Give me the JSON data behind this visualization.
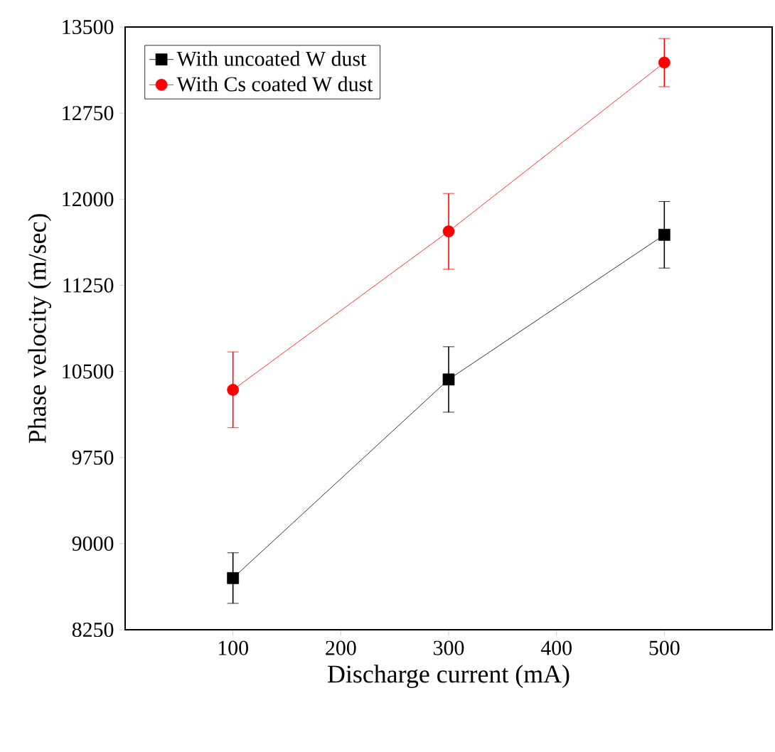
{
  "chart_data": {
    "type": "line",
    "xlabel": "Discharge current (mA)",
    "ylabel": "Phase velocity (m/sec)",
    "x": [
      100,
      300,
      500
    ],
    "series": [
      {
        "name": "With uncoated W dust",
        "color": "#000000",
        "marker": "square",
        "values": [
          8700,
          10430,
          11690
        ],
        "errors": [
          220,
          285,
          290
        ]
      },
      {
        "name": "With Cs coated W dust",
        "color": "#ff0000",
        "marker": "circle",
        "values": [
          10340,
          11720,
          13190
        ],
        "errors": [
          330,
          330,
          210
        ]
      }
    ],
    "xlim": [
      0,
      600
    ],
    "xticks": [
      100,
      200,
      300,
      400,
      500
    ],
    "ylim": [
      8250,
      13500
    ],
    "yticks": [
      8250,
      9000,
      9750,
      10500,
      11250,
      12000,
      12750,
      13500
    ],
    "legend": "top left",
    "grid": false,
    "line_style": "solid"
  }
}
